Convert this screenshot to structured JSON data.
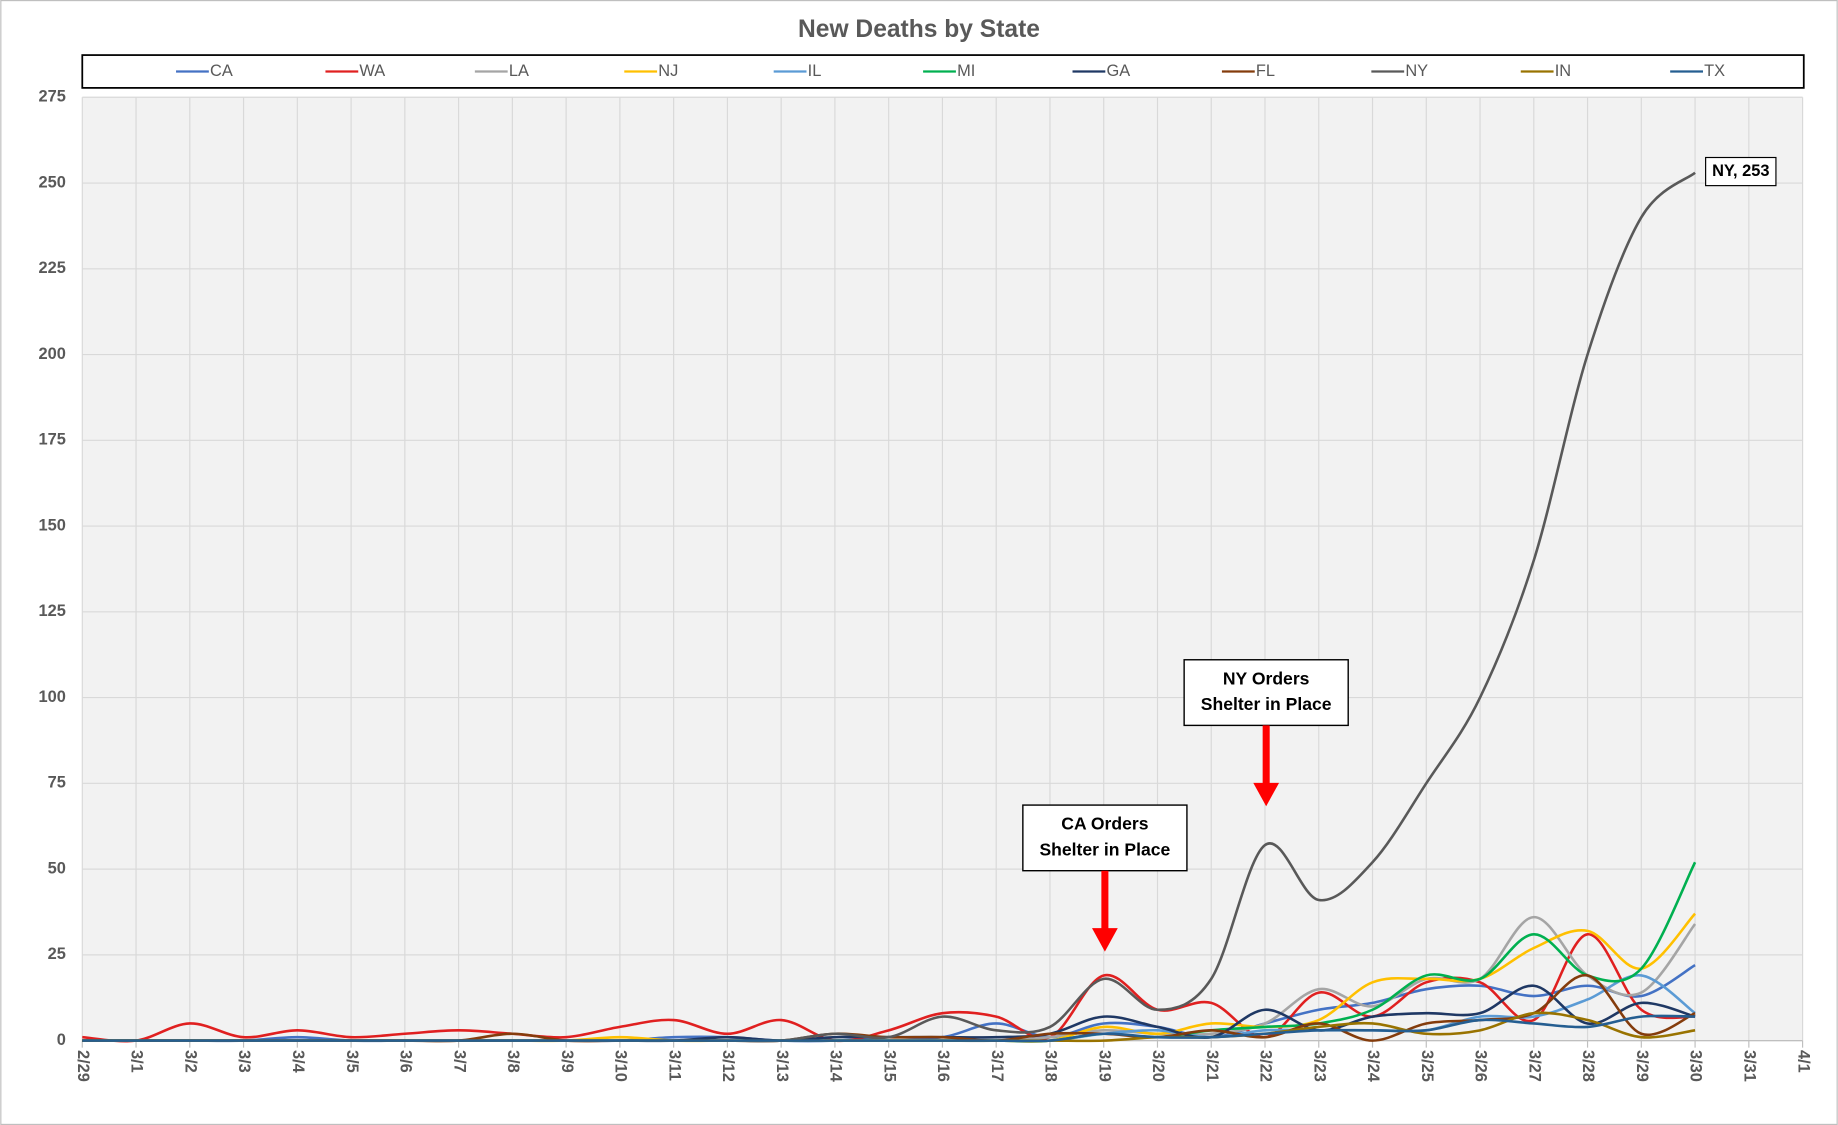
{
  "chart_data": {
    "type": "line",
    "title": "New Deaths by State",
    "categories": [
      "2/29",
      "3/1",
      "3/2",
      "3/3",
      "3/4",
      "3/5",
      "3/6",
      "3/7",
      "3/8",
      "3/9",
      "3/10",
      "3/11",
      "3/12",
      "3/13",
      "3/14",
      "3/15",
      "3/16",
      "3/17",
      "3/18",
      "3/19",
      "3/20",
      "3/21",
      "3/22",
      "3/23",
      "3/24",
      "3/25",
      "3/26",
      "3/27",
      "3/28",
      "3/29",
      "3/30",
      "3/31",
      "4/1"
    ],
    "ylim": [
      0,
      275
    ],
    "yticks": [
      0,
      25,
      50,
      75,
      100,
      125,
      150,
      175,
      200,
      225,
      250,
      275
    ],
    "grid": true,
    "legend": "top",
    "series": [
      {
        "name": "CA",
        "color": "#4472c4",
        "values": [
          0,
          0,
          0,
          0,
          1,
          0,
          0,
          0,
          0,
          0,
          0,
          1,
          1,
          0,
          0,
          1,
          1,
          5,
          1,
          5,
          4,
          1,
          5,
          9,
          11,
          15,
          16,
          13,
          16,
          13,
          22,
          null,
          null
        ]
      },
      {
        "name": "WA",
        "color": "#e02020",
        "values": [
          1,
          0,
          5,
          1,
          3,
          1,
          2,
          3,
          2,
          1,
          4,
          6,
          2,
          6,
          0,
          3,
          8,
          7,
          1,
          19,
          9,
          11,
          1,
          14,
          7,
          17,
          17,
          6,
          31,
          9,
          7,
          null,
          null
        ]
      },
      {
        "name": "LA",
        "color": "#a5a5a5",
        "values": [
          0,
          0,
          0,
          0,
          0,
          0,
          0,
          0,
          0,
          0,
          0,
          0,
          0,
          0,
          0,
          0,
          0,
          0,
          1,
          3,
          2,
          2,
          5,
          15,
          10,
          18,
          18,
          36,
          19,
          14,
          34,
          null,
          null
        ]
      },
      {
        "name": "NJ",
        "color": "#ffc000",
        "values": [
          0,
          0,
          0,
          0,
          0,
          0,
          0,
          0,
          0,
          0,
          1,
          0,
          0,
          0,
          0,
          0,
          0,
          0,
          0,
          4,
          2,
          5,
          4,
          6,
          17,
          18,
          18,
          27,
          32,
          21,
          37,
          null,
          null
        ]
      },
      {
        "name": "IL",
        "color": "#5b9bd5",
        "values": [
          0,
          0,
          0,
          0,
          0,
          0,
          0,
          0,
          0,
          0,
          0,
          0,
          0,
          0,
          0,
          0,
          0,
          0,
          0,
          2,
          3,
          1,
          3,
          3,
          3,
          3,
          7,
          7,
          12,
          19,
          8,
          null,
          null
        ]
      },
      {
        "name": "MI",
        "color": "#00b050",
        "values": [
          0,
          0,
          0,
          0,
          0,
          0,
          0,
          0,
          0,
          0,
          0,
          0,
          0,
          0,
          0,
          0,
          0,
          0,
          0,
          2,
          1,
          3,
          4,
          5,
          9,
          19,
          18,
          31,
          19,
          21,
          52,
          null,
          null
        ]
      },
      {
        "name": "GA",
        "color": "#1f3864",
        "values": [
          0,
          0,
          0,
          0,
          0,
          0,
          0,
          0,
          0,
          0,
          0,
          0,
          1,
          0,
          1,
          1,
          1,
          1,
          2,
          7,
          4,
          1,
          9,
          3,
          7,
          8,
          8,
          16,
          5,
          11,
          7,
          null,
          null
        ]
      },
      {
        "name": "FL",
        "color": "#843c0c",
        "values": [
          0,
          0,
          0,
          0,
          0,
          0,
          0,
          0,
          2,
          0,
          0,
          0,
          0,
          0,
          2,
          1,
          1,
          0,
          2,
          2,
          1,
          3,
          1,
          5,
          0,
          5,
          6,
          8,
          19,
          2,
          8,
          null,
          null
        ]
      },
      {
        "name": "NY",
        "color": "#595959",
        "values": [
          0,
          0,
          0,
          0,
          0,
          0,
          0,
          0,
          0,
          0,
          0,
          0,
          0,
          0,
          2,
          1,
          7,
          3,
          4,
          18,
          9,
          18,
          57,
          41,
          52,
          75,
          100,
          140,
          200,
          240,
          253,
          null,
          null
        ]
      },
      {
        "name": "IN",
        "color": "#997300",
        "values": [
          0,
          0,
          0,
          0,
          0,
          0,
          0,
          0,
          0,
          0,
          0,
          0,
          0,
          0,
          0,
          0,
          0,
          0,
          0,
          0,
          1,
          1,
          2,
          4,
          5,
          2,
          3,
          8,
          6,
          1,
          3,
          null,
          null
        ]
      },
      {
        "name": "TX",
        "color": "#255e91",
        "values": [
          0,
          0,
          0,
          0,
          0,
          0,
          0,
          0,
          0,
          0,
          0,
          0,
          0,
          0,
          0,
          0,
          0,
          0,
          0,
          2,
          1,
          1,
          2,
          3,
          3,
          3,
          6,
          5,
          4,
          7,
          7,
          null,
          null
        ]
      }
    ],
    "end_label": "NY, 253",
    "annotations": [
      {
        "lines": [
          "CA Orders",
          "Shelter in Place"
        ]
      },
      {
        "lines": [
          "NY Orders",
          "Shelter in Place"
        ]
      }
    ]
  }
}
